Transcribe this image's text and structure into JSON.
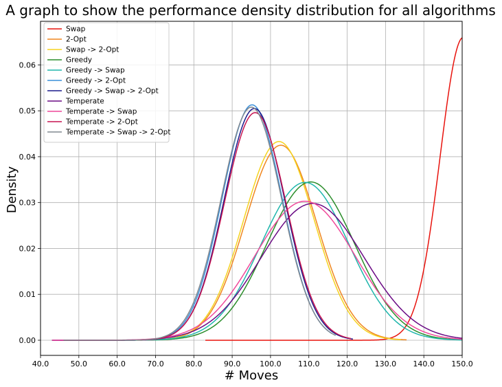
{
  "chart_data": {
    "type": "line",
    "title": "A graph to show the performance density distribution for all algorithms",
    "xlabel": "# Moves",
    "ylabel": "Density",
    "xlim": [
      40,
      150
    ],
    "ylim": [
      -0.0033,
      0.0695
    ],
    "xticks": [
      "40.0",
      "50.0",
      "60.0",
      "70.0",
      "80.0",
      "90.0",
      "100.0",
      "110.0",
      "120.0",
      "130.0",
      "140.0",
      "150.0"
    ],
    "yticks": [
      "0.00",
      "0.01",
      "0.02",
      "0.03",
      "0.04",
      "0.05",
      "0.06"
    ],
    "grid": true,
    "legend_position": "top-left",
    "series": [
      {
        "name": "Swap",
        "color": "#e8120c",
        "distribution": {
          "mean": 150.3,
          "sd": 6.05,
          "x_range": [
            83,
            150
          ]
        },
        "peak_density": 0.066
      },
      {
        "name": "2-Opt",
        "color": "#f0861e",
        "distribution": {
          "mean": 102.7,
          "sd": 9.3,
          "x_range": [
            72,
            135.5
          ]
        },
        "peak_density": 0.0425
      },
      {
        "name": "Swap -> 2-Opt",
        "color": "#f5d320",
        "distribution": {
          "mean": 102.2,
          "sd": 9.2,
          "x_range": [
            72,
            134
          ]
        },
        "peak_density": 0.0433
      },
      {
        "name": "Greedy",
        "color": "#2a8d2a",
        "distribution": {
          "mean": 110.5,
          "sd": 11.5,
          "x_range": [
            46,
            150
          ]
        },
        "peak_density": 0.0345
      },
      {
        "name": "Greedy -> Swap",
        "color": "#1fb6ac",
        "distribution": {
          "mean": 109.0,
          "sd": 11.5,
          "x_range": [
            46,
            150
          ]
        },
        "peak_density": 0.0344
      },
      {
        "name": "Greedy -> 2-Opt",
        "color": "#3a8fd8",
        "distribution": {
          "mean": 95.2,
          "sd": 7.8,
          "x_range": [
            45,
            116
          ]
        },
        "peak_density": 0.0513
      },
      {
        "name": "Greedy -> Swap -> 2-Opt",
        "color": "#1a1a8c",
        "distribution": {
          "mean": 95.8,
          "sd": 7.9,
          "x_range": [
            43,
            121.5
          ]
        },
        "peak_density": 0.0505
      },
      {
        "name": "Temperate",
        "color": "#6a0a84",
        "distribution": {
          "mean": 111.0,
          "sd": 13.4,
          "x_range": [
            43,
            150
          ]
        },
        "peak_density": 0.0298
      },
      {
        "name": "Temperate -> Swap",
        "color": "#f0489a",
        "distribution": {
          "mean": 109.0,
          "sd": 13.1,
          "x_range": [
            43,
            150
          ]
        },
        "peak_density": 0.0303
      },
      {
        "name": "Temperate -> 2-Opt",
        "color": "#c71450",
        "distribution": {
          "mean": 96.0,
          "sd": 8.0,
          "x_range": [
            46,
            121
          ]
        },
        "peak_density": 0.0496
      },
      {
        "name": "Temperate -> Swap -> 2-Opt",
        "color": "#808890",
        "distribution": {
          "mean": 95.0,
          "sd": 7.9,
          "x_range": [
            46,
            117
          ]
        },
        "peak_density": 0.0508
      }
    ]
  }
}
